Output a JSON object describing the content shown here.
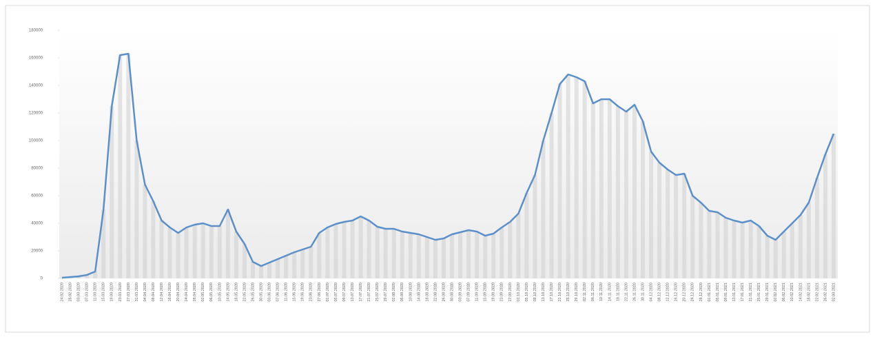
{
  "chart_data": {
    "type": "line",
    "color": "#5b8fc9",
    "bar_color": "#d0d0d0",
    "ylim": [
      0,
      180000
    ],
    "yticks": [
      0,
      20000,
      40000,
      60000,
      80000,
      100000,
      120000,
      140000,
      160000,
      180000
    ],
    "categories": [
      "24.02.2020",
      "28.02.2020",
      "03.03.2020",
      "07.03.2020",
      "11.03.2020",
      "15.03.2020",
      "19.03.2020",
      "23.03.2020",
      "27.03.2020",
      "31.03.2020",
      "04.04.2020",
      "08.04.2020",
      "12.04.2020",
      "16.04.2020",
      "20.04.2020",
      "24.04.2020",
      "28.04.2020",
      "02.05.2020",
      "06.05.2020",
      "10.05.2020",
      "14.05.2020",
      "18.05.2020",
      "22.05.2020",
      "26.05.2020",
      "30.05.2020",
      "03.06.2020",
      "07.06.2020",
      "11.06.2020",
      "15.06.2020",
      "19.06.2020",
      "23.06.2020",
      "27.06.2020",
      "01.07.2020",
      "05.07.2020",
      "09.07.2020",
      "13.07.2020",
      "17.07.2020",
      "21.07.2020",
      "25.07.2020",
      "29.07.2020",
      "02.08.2020",
      "06.08.2020",
      "10.08.2020",
      "14.08.2020",
      "18.08.2020",
      "22.08.2020",
      "26.08.2020",
      "30.08.2020",
      "03.09.2020",
      "07.09.2020",
      "11.09.2020",
      "15.09.2020",
      "19.09.2020",
      "23.09.2020",
      "27.09.2020",
      "01.10.2020",
      "05.10.2020",
      "09.10.2020",
      "13.10.2020",
      "17.10.2020",
      "21.10.2020",
      "25.10.2020",
      "29.10.2020",
      "02.11.2020",
      "06.11.2020",
      "10.11.2020",
      "14.11.2020",
      "18.11.2020",
      "22.11.2020",
      "26.11.2020",
      "30.11.2020",
      "04.12.2020",
      "08.12.2020",
      "12.12.2020",
      "16.12.2020",
      "20.12.2020",
      "24.12.2020",
      "28.12.2020",
      "01.01.2021",
      "05.01.2021",
      "09.01.2021",
      "13.01.2021",
      "17.01.2021",
      "21.01.2021",
      "25.01.2021",
      "29.01.2021",
      "02.02.2021",
      "06.02.2021",
      "10.02.2021",
      "14.02.2021",
      "18.02.2021",
      "22.02.2021",
      "26.02.2021",
      "02.03.2021"
    ],
    "values": [
      500,
      1000,
      1500,
      2500,
      5000,
      50000,
      125000,
      162000,
      163000,
      100000,
      68000,
      56000,
      42000,
      37000,
      33000,
      37000,
      39000,
      40000,
      38000,
      38000,
      50000,
      34000,
      25000,
      12000,
      9000,
      11500,
      14000,
      16500,
      19000,
      21000,
      23000,
      33000,
      37000,
      39500,
      41000,
      42000,
      45000,
      42000,
      37500,
      36000,
      36000,
      34000,
      33000,
      32000,
      30000,
      28000,
      29000,
      32000,
      33500,
      35000,
      34000,
      31000,
      32500,
      37000,
      41000,
      47000,
      62000,
      75000,
      100000,
      120000,
      141000,
      148000,
      146000,
      143000,
      127000,
      130000,
      130000,
      125000,
      121000,
      126000,
      114000,
      92000,
      84000,
      79000,
      75000,
      76000,
      60000,
      55000,
      49000,
      48000,
      44000,
      42000,
      40500,
      42000,
      38000,
      31000,
      28000,
      34000,
      40000,
      46000,
      55000,
      73000,
      90000,
      105000
    ]
  }
}
